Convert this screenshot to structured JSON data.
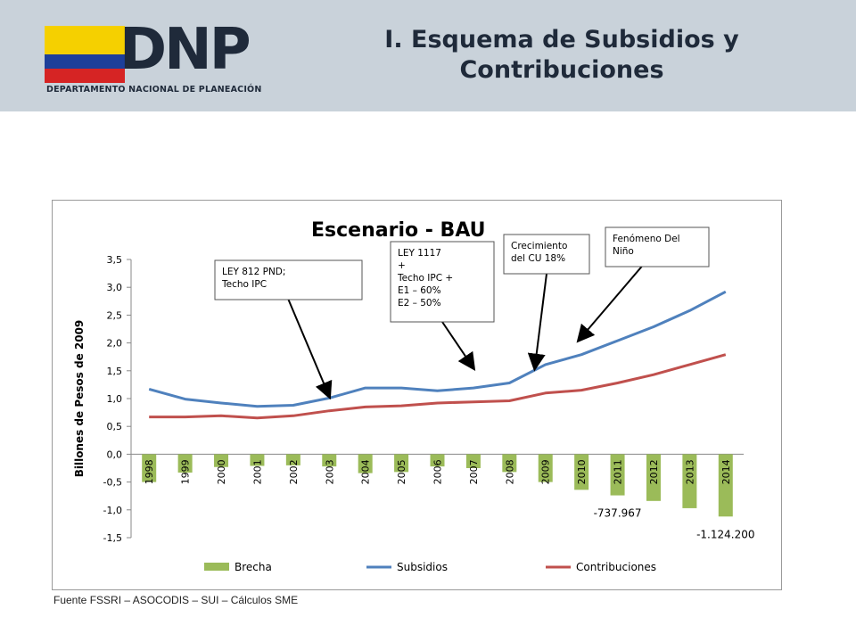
{
  "header": {
    "title": "I. Esquema de Subsidios y Contribuciones",
    "logo_text": "DNP",
    "logo_subtitle": "DEPARTAMENTO NACIONAL DE PLANEACIÓN",
    "flag_colors": [
      "#f5d000",
      "#1d3f9a",
      "#d62424"
    ]
  },
  "source_note": "Fuente FSSRI – ASOCODIS – SUI – Cálculos SME",
  "chart_data": {
    "type": "bar",
    "title": "Escenario - BAU",
    "ylabel": "Billones de Pesos de 2009",
    "xlabel": "",
    "ylim": [
      -1.5,
      3.5
    ],
    "yticks": [
      "3,5",
      "3,0",
      "2,5",
      "2,0",
      "1,5",
      "1,0",
      "0,5",
      "0,0",
      "-0,5",
      "-1,0",
      "-1,5"
    ],
    "categories": [
      "1998",
      "1999",
      "2000",
      "2001",
      "2002",
      "2003",
      "2004",
      "2005",
      "2006",
      "2007",
      "2008",
      "2009",
      "2010",
      "2011",
      "2012",
      "2013",
      "2014"
    ],
    "series": [
      {
        "name": "Brecha",
        "type": "bar",
        "color": "#9bbb59",
        "values": [
          -0.5,
          -0.33,
          -0.23,
          -0.21,
          -0.2,
          -0.22,
          -0.34,
          -0.32,
          -0.22,
          -0.25,
          -0.32,
          -0.5,
          -0.64,
          -0.74,
          -0.84,
          -0.97,
          -1.12
        ]
      },
      {
        "name": "Subsidios",
        "type": "line",
        "color": "#4f81bd",
        "values": [
          1.17,
          0.99,
          0.92,
          0.86,
          0.88,
          1.01,
          1.19,
          1.19,
          1.14,
          1.19,
          1.28,
          1.61,
          1.79,
          2.04,
          2.29,
          2.58,
          2.92
        ]
      },
      {
        "name": "Contribuciones",
        "type": "line",
        "color": "#c0504d",
        "values": [
          0.67,
          0.67,
          0.69,
          0.65,
          0.69,
          0.78,
          0.85,
          0.87,
          0.92,
          0.94,
          0.96,
          1.1,
          1.15,
          1.28,
          1.43,
          1.61,
          1.79
        ]
      }
    ],
    "data_labels": [
      {
        "text": "-737.967",
        "category": "2011"
      },
      {
        "text": "-1.124.200",
        "category": "2014"
      }
    ],
    "annotations": [
      {
        "lines": [
          "LEY 812 PND;",
          "Techo IPC"
        ],
        "target_category": "2003",
        "target_value": 1.04
      },
      {
        "lines": [
          "LEY 1117",
          "+",
          "Techo IPC +",
          "E1 – 60%",
          "E2 – 50%"
        ],
        "target_category": "2007",
        "target_value": 1.55
      },
      {
        "lines": [
          "Crecimiento",
          "del CU 18%"
        ],
        "target_category": "2009",
        "target_value": 1.55
      },
      {
        "lines": [
          "Fenómeno Del",
          "Niño"
        ],
        "target_category": "2010",
        "target_value": 2.05
      }
    ],
    "legend_position": "bottom",
    "grid": false
  }
}
